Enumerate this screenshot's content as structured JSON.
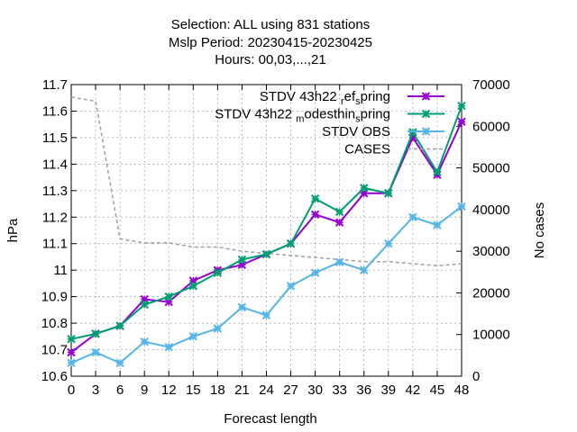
{
  "chart_data": {
    "type": "line",
    "title_lines": [
      "Selection: ALL using   831 stations",
      "Mslp   Period: 20230415-20230425",
      "Hours:  00,03,...,21"
    ],
    "xlabel": "Forecast length",
    "ylabel": "hPa",
    "y2label": "No cases",
    "x": [
      0,
      3,
      6,
      9,
      12,
      15,
      18,
      21,
      24,
      27,
      30,
      33,
      36,
      39,
      42,
      45,
      48
    ],
    "xlim": [
      0,
      48
    ],
    "ylim": [
      10.6,
      11.7
    ],
    "y2lim": [
      0,
      70000
    ],
    "yticks": [
      "10.6",
      "10.7",
      "10.8",
      "10.9",
      "11",
      "11.1",
      "11.2",
      "11.3",
      "11.4",
      "11.5",
      "11.6",
      "11.7"
    ],
    "y2ticks": [
      "0",
      "10000",
      "20000",
      "30000",
      "40000",
      "50000",
      "60000",
      "70000"
    ],
    "grid": true,
    "legend_position": "top-right",
    "series": [
      {
        "name": "STDV 43h22_ref_spring",
        "label_parts": [
          "STDV 43h22",
          "r",
          "ef",
          "s",
          "pring"
        ],
        "color": "#9400d3",
        "marker": "x",
        "axis": "y",
        "values": [
          10.69,
          10.76,
          10.79,
          10.89,
          10.88,
          10.96,
          11.0,
          11.02,
          11.06,
          11.1,
          11.21,
          11.18,
          11.29,
          11.29,
          11.5,
          11.36,
          11.56
        ]
      },
      {
        "name": "STDV 43h22_modesthin_spring",
        "label_parts": [
          "STDV 43h22",
          "m",
          "odesthin",
          "s",
          "pring"
        ],
        "color": "#009e73",
        "marker": "x",
        "axis": "y",
        "values": [
          10.74,
          10.76,
          10.79,
          10.87,
          10.9,
          10.94,
          10.99,
          11.04,
          11.06,
          11.1,
          11.27,
          11.22,
          11.31,
          11.29,
          11.52,
          11.37,
          11.62
        ]
      },
      {
        "name": "STDV OBS",
        "label_parts": [
          "STDV OBS"
        ],
        "color": "#56b4e9",
        "marker": "x",
        "axis": "y",
        "values": [
          10.65,
          10.69,
          10.65,
          10.73,
          10.71,
          10.75,
          10.78,
          10.86,
          10.83,
          10.94,
          10.99,
          11.03,
          11.0,
          11.1,
          11.2,
          11.17,
          11.24
        ]
      },
      {
        "name": "CASES",
        "label_parts": [
          "CASES"
        ],
        "color": "#a0a0a0",
        "marker": "none",
        "dashed": true,
        "axis": "y2",
        "values": [
          67000,
          66000,
          33000,
          32000,
          32000,
          31000,
          31000,
          30000,
          29500,
          29000,
          28500,
          28000,
          27500,
          27500,
          27000,
          26500,
          27000
        ]
      }
    ]
  }
}
